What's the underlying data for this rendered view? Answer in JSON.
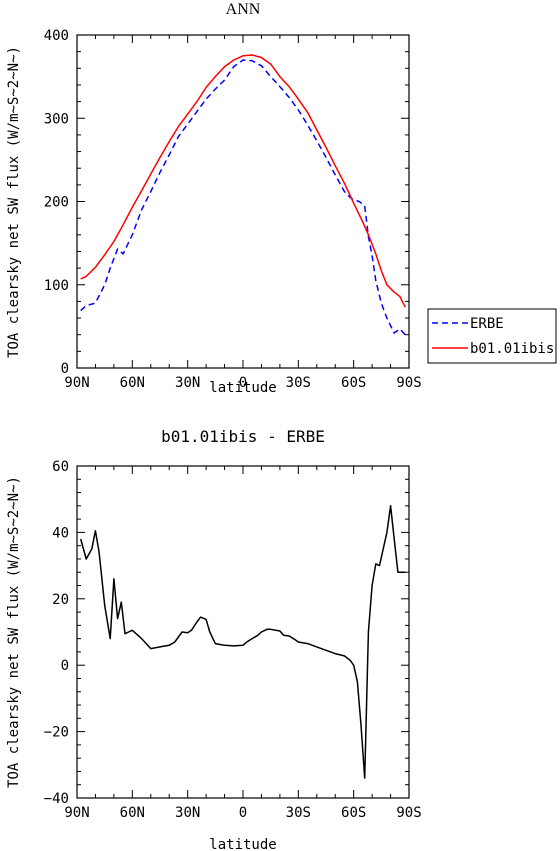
{
  "chart_data": [
    {
      "type": "line",
      "title": "ANN",
      "xlabel": "latitude",
      "ylabel": "TOA clearsky net SW flux (W/m~S~2~N~)",
      "xlim": [
        -90,
        90
      ],
      "ylim": [
        0,
        400
      ],
      "x_ticks": [
        -90,
        -60,
        -30,
        0,
        30,
        60,
        90
      ],
      "x_tick_labels": [
        "90N",
        "60N",
        "30N",
        "0",
        "30S",
        "60S",
        "90S"
      ],
      "y_ticks": [
        0,
        100,
        200,
        300,
        400
      ],
      "y_tick_labels": [
        "0",
        "100",
        "200",
        "300",
        "400"
      ],
      "legend": {
        "position": "right"
      },
      "series": [
        {
          "name": "ERBE",
          "color": "#0000ff",
          "dash": "dashed",
          "x": [
            -88,
            -85,
            -80,
            -75,
            -72,
            -68,
            -65,
            -60,
            -55,
            -50,
            -45,
            -40,
            -35,
            -30,
            -25,
            -20,
            -15,
            -10,
            -5,
            0,
            5,
            10,
            15,
            20,
            25,
            30,
            35,
            40,
            45,
            50,
            55,
            58,
            60,
            63,
            66,
            68,
            70,
            72,
            75,
            78,
            82,
            85,
            88
          ],
          "y": [
            69,
            75,
            78,
            100,
            120,
            143,
            137,
            160,
            190,
            212,
            235,
            256,
            278,
            293,
            308,
            323,
            335,
            346,
            362,
            370,
            369,
            363,
            350,
            338,
            325,
            310,
            292,
            273,
            253,
            232,
            212,
            205,
            202,
            200,
            195,
            158,
            135,
            105,
            78,
            60,
            42,
            47,
            40
          ]
        },
        {
          "name": "b01.01ibis",
          "color": "#ff0000",
          "dash": "solid",
          "x": [
            -88,
            -85,
            -80,
            -75,
            -70,
            -65,
            -60,
            -55,
            -50,
            -45,
            -40,
            -35,
            -30,
            -25,
            -20,
            -15,
            -10,
            -5,
            0,
            5,
            10,
            15,
            20,
            25,
            30,
            35,
            40,
            45,
            50,
            55,
            60,
            65,
            68,
            72,
            75,
            78,
            82,
            85,
            88
          ],
          "y": [
            107,
            110,
            121,
            136,
            152,
            172,
            193,
            213,
            233,
            253,
            272,
            290,
            305,
            320,
            337,
            350,
            362,
            370,
            375,
            376,
            373,
            365,
            350,
            338,
            323,
            307,
            286,
            265,
            243,
            222,
            198,
            175,
            160,
            137,
            117,
            100,
            91,
            86,
            73
          ]
        }
      ]
    },
    {
      "type": "line",
      "title": "b01.01ibis - ERBE",
      "xlabel": "latitude",
      "ylabel": "TOA clearsky net SW flux (W/m~S~2~N~)",
      "xlim": [
        -90,
        90
      ],
      "ylim": [
        -40,
        60
      ],
      "x_ticks": [
        -90,
        -60,
        -30,
        0,
        30,
        60,
        90
      ],
      "x_tick_labels": [
        "90N",
        "60N",
        "30N",
        "0",
        "30S",
        "60S",
        "90S"
      ],
      "y_ticks": [
        -40,
        -20,
        0,
        20,
        40,
        60
      ],
      "y_tick_labels": [
        "-40",
        "-20",
        "0",
        "20",
        "40",
        "60"
      ],
      "series": [
        {
          "color": "#000000",
          "dash": "solid",
          "x": [
            -88,
            -85,
            -82,
            -80,
            -78,
            -75,
            -72,
            -70,
            -68,
            -66,
            -64,
            -62,
            -60,
            -55,
            -50,
            -45,
            -40,
            -37,
            -35,
            -33,
            -30,
            -28,
            -25,
            -23,
            -20,
            -18,
            -15,
            -12,
            -10,
            -5,
            0,
            2,
            5,
            8,
            10,
            13,
            15,
            20,
            22,
            25,
            28,
            30,
            35,
            40,
            45,
            50,
            55,
            58,
            60,
            62,
            64,
            66,
            68,
            70,
            72,
            74,
            76,
            78,
            80,
            82,
            84,
            86,
            88
          ],
          "y": [
            38,
            32,
            35,
            40.5,
            34,
            18,
            8,
            26,
            14,
            19,
            9.5,
            10,
            10.5,
            8,
            5,
            5.5,
            6,
            7,
            8.5,
            10,
            9.8,
            10.5,
            13,
            14.5,
            13.8,
            10,
            6.5,
            6.2,
            6,
            5.8,
            6,
            7,
            8,
            9,
            10,
            10.8,
            10.8,
            10.3,
            9,
            8.8,
            7.8,
            7,
            6.5,
            5.5,
            4.5,
            3.5,
            2.8,
            1.5,
            0,
            -5,
            -18,
            -34,
            10,
            24,
            30.5,
            30,
            35,
            40,
            48,
            38,
            28,
            28,
            28
          ]
        }
      ]
    }
  ]
}
